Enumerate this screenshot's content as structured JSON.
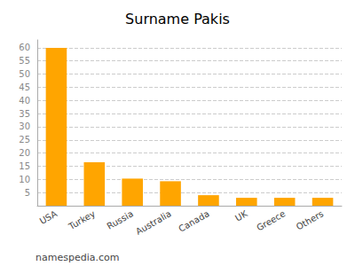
{
  "chart_data": {
    "type": "bar",
    "title": "Surname Pakis",
    "categories": [
      "USA",
      "Turkey",
      "Russia",
      "Australia",
      "Canada",
      "UK",
      "Greece",
      "Others"
    ],
    "values": [
      60,
      16.5,
      10.3,
      9.3,
      4.0,
      3.0,
      3.0,
      3.0
    ],
    "color": "#FFA500",
    "ylim": [
      0,
      63
    ],
    "yticks": [
      5,
      10,
      15,
      20,
      25,
      30,
      35,
      40,
      45,
      50,
      55,
      60
    ],
    "grid": true,
    "annotations": [
      "namespedia.com"
    ]
  }
}
